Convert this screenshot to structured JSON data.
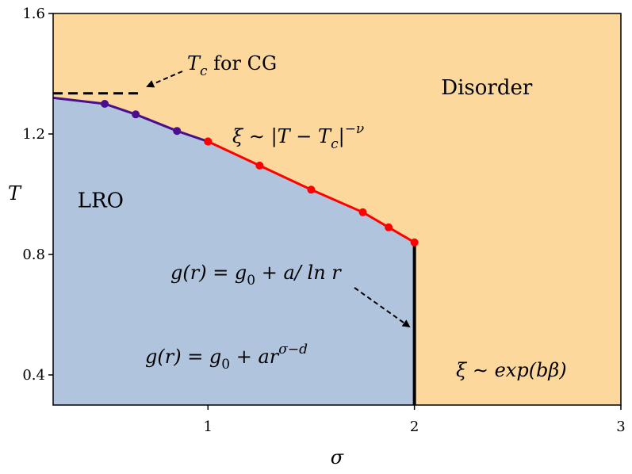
{
  "chart_data": {
    "type": "line",
    "title": "",
    "xlabel": "σ",
    "ylabel": "T",
    "xlim": [
      0.25,
      3.0
    ],
    "ylim": [
      0.3,
      1.6
    ],
    "x_ticks": [
      1,
      2,
      3
    ],
    "x_tick_labels": [
      "1",
      "2",
      "3"
    ],
    "y_ticks": [
      0.4,
      0.8,
      1.2,
      1.6
    ],
    "y_tick_labels": [
      "0.4",
      "0.8",
      "1.2",
      "1.6"
    ],
    "grid": false,
    "colors": {
      "lro_region": "#b0c4de",
      "disorder_region": "#fdd89c",
      "purple_series": "#4b0e8c",
      "red_series": "#ff0000",
      "boundary": "#000000"
    },
    "series": [
      {
        "color": "#4b0e8c",
        "x": [
          0.25,
          0.5,
          0.65,
          0.85,
          1.0
        ],
        "y": [
          1.32,
          1.3,
          1.265,
          1.21,
          1.175
        ],
        "markers": [
          false,
          true,
          true,
          true,
          true
        ]
      },
      {
        "color": "#ff0000",
        "x": [
          1.0,
          1.25,
          1.5,
          1.75,
          1.875,
          2.0
        ],
        "y": [
          1.175,
          1.095,
          1.015,
          0.94,
          0.89,
          0.84
        ],
        "markers": [
          true,
          true,
          true,
          true,
          true,
          true
        ]
      }
    ],
    "vertical_boundary": {
      "x": 2.0,
      "y_from": 0.3,
      "y_to": 0.83
    },
    "cg_line": {
      "y": 1.335,
      "x_from": 0.25,
      "x_to": 0.68,
      "style": "dashed"
    },
    "region_labels": [
      {
        "text": "LRO",
        "x": 0.48,
        "y": 0.98
      },
      {
        "text": "Disorder",
        "x": 2.35,
        "y": 1.355
      }
    ],
    "annotations": {
      "cg": {
        "prefix": "T",
        "sub": "c",
        "suffix": " for CG"
      },
      "xi_power": {
        "lhs": "ξ ∼ |T − T",
        "sub": "c",
        "close": "|",
        "sup": "−ν"
      },
      "g_log": {
        "text": "g(r) = g",
        "sub": "0",
        "rest": " + a/ ln r"
      },
      "g_power": {
        "text": "g(r) = g",
        "sub": "0",
        "rest": " + ar",
        "sup": "σ−d"
      },
      "xi_exp": {
        "text": "ξ ∼ exp(bβ)"
      }
    }
  }
}
